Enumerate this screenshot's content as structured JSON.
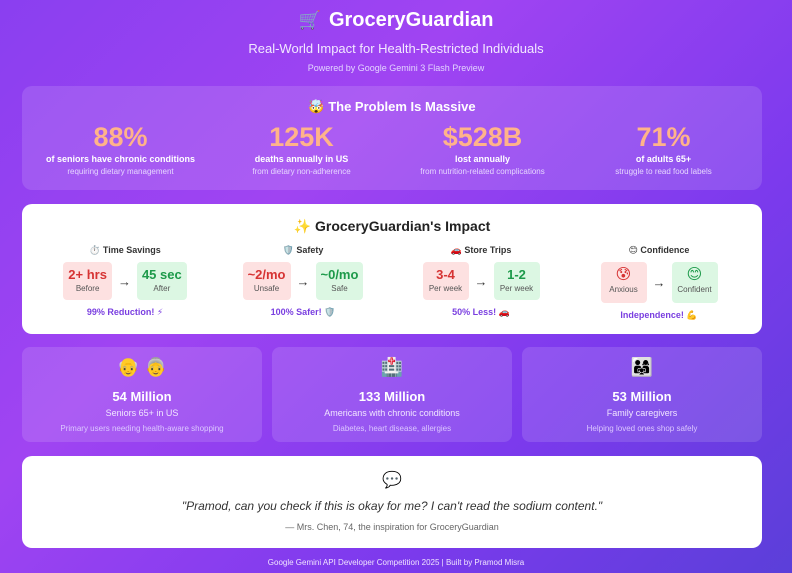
{
  "header": {
    "logo_icon": "🛒",
    "title": "GroceryGuardian",
    "subtitle": "Real-World Impact for Health-Restricted Individuals",
    "powered_by": "Powered by Google Gemini 3 Flash Preview"
  },
  "problem": {
    "title": "🤯 The Problem Is Massive",
    "stats": [
      {
        "value": "88%",
        "label": "of seniors have chronic conditions",
        "sub": "requiring dietary management"
      },
      {
        "value": "125K",
        "label": "deaths annually in US",
        "sub": "from dietary non-adherence"
      },
      {
        "value": "$528B",
        "label": "lost annually",
        "sub": "from nutrition-related complications"
      },
      {
        "value": "71%",
        "label": "of adults 65+",
        "sub": "struggle to read food labels"
      }
    ]
  },
  "impact": {
    "title": "✨ GroceryGuardian's Impact",
    "metrics": [
      {
        "head": "⏱️ Time Savings",
        "before": "2+ hrs",
        "before_cap": "Before",
        "after": "45 sec",
        "after_cap": "After",
        "result": "99% Reduction! ⚡"
      },
      {
        "head": "🛡️ Safety",
        "before": "~2/mo",
        "before_cap": "Unsafe",
        "after": "~0/mo",
        "after_cap": "Safe",
        "result": "100% Safer! 🛡️"
      },
      {
        "head": "🚗 Store Trips",
        "before": "3-4",
        "before_cap": "Per week",
        "after": "1-2",
        "after_cap": "Per week",
        "result": "50% Less! 🚗"
      },
      {
        "head": "😊 Confidence",
        "before": "😰",
        "before_cap": "Anxious",
        "after": "😊",
        "after_cap": "Confident",
        "result": "Independence! 💪"
      }
    ]
  },
  "people": [
    {
      "emoji": "👴 👵",
      "number": "54 Million",
      "label": "Seniors 65+ in US",
      "sub": "Primary users needing health-aware shopping"
    },
    {
      "emoji": "🏥",
      "number": "133 Million",
      "label": "Americans with chronic conditions",
      "sub": "Diabetes, heart disease, allergies"
    },
    {
      "emoji": "👨‍👩‍👧",
      "number": "53 Million",
      "label": "Family caregivers",
      "sub": "Helping loved ones shop safely"
    }
  ],
  "quote": {
    "icon": "💬",
    "text": "\"Pramod, can you check if this is okay for me? I can't read the sodium content.\"",
    "author": "— Mrs. Chen, 74, the inspiration for GroceryGuardian"
  },
  "footer": "Google Gemini API Developer Competition 2025 | Built by Pramod Misra"
}
